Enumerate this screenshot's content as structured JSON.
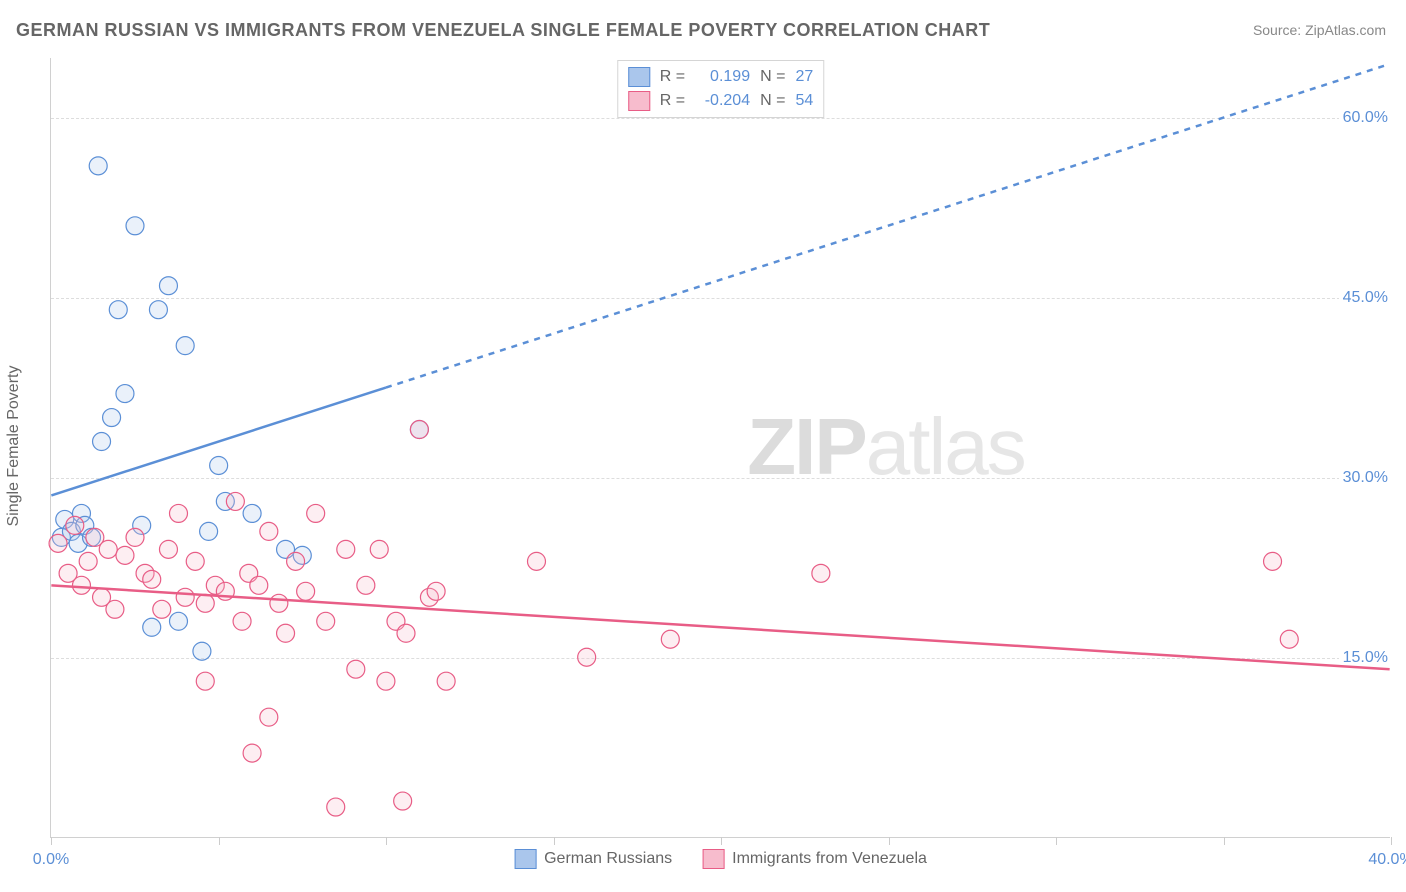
{
  "title": "GERMAN RUSSIAN VS IMMIGRANTS FROM VENEZUELA SINGLE FEMALE POVERTY CORRELATION CHART",
  "source": "Source: ZipAtlas.com",
  "watermark_bold": "ZIP",
  "watermark_light": "atlas",
  "yaxis_title": "Single Female Poverty",
  "chart": {
    "type": "scatter",
    "background_color": "#ffffff",
    "grid_color": "#dddddd",
    "axis_color": "#d0d0d0",
    "xlim": [
      0,
      40
    ],
    "ylim": [
      0,
      65
    ],
    "label_fontsize": 16,
    "ytick_color": "#5b8fd6",
    "yticks": [
      15,
      30,
      45,
      60
    ],
    "ytick_labels": [
      "15.0%",
      "30.0%",
      "45.0%",
      "60.0%"
    ],
    "xticks": [
      0,
      5,
      10,
      15,
      20,
      25,
      30,
      35,
      40
    ],
    "xtick_labels": {
      "0": "0.0%",
      "40": "40.0%"
    },
    "xtick_label_color": "#5b8fd6",
    "marker_radius": 9,
    "marker_fill_opacity": 0.25,
    "marker_stroke_width": 1.2,
    "line_width": 2.5,
    "series": [
      {
        "name": "German Russians",
        "color": "#5b8fd6",
        "fill": "#aac6ec",
        "R": "0.199",
        "N": "27",
        "trend": {
          "x1": 0,
          "y1": 28.5,
          "x2_solid": 10,
          "y2_solid": 37.5,
          "x2": 40,
          "y2": 64.5,
          "dash": "6,6"
        },
        "points": [
          [
            0.3,
            25
          ],
          [
            0.4,
            26.5
          ],
          [
            0.6,
            25.5
          ],
          [
            0.8,
            24.5
          ],
          [
            0.9,
            27
          ],
          [
            1.0,
            26
          ],
          [
            1.2,
            25
          ],
          [
            1.4,
            56
          ],
          [
            1.5,
            33
          ],
          [
            1.8,
            35
          ],
          [
            2.0,
            44
          ],
          [
            2.2,
            37
          ],
          [
            2.5,
            51
          ],
          [
            2.7,
            26
          ],
          [
            3.0,
            17.5
          ],
          [
            3.2,
            44
          ],
          [
            3.5,
            46
          ],
          [
            3.8,
            18
          ],
          [
            4.0,
            41
          ],
          [
            4.5,
            15.5
          ],
          [
            4.7,
            25.5
          ],
          [
            5.0,
            31
          ],
          [
            5.2,
            28
          ],
          [
            6.0,
            27
          ],
          [
            7.0,
            24
          ],
          [
            7.5,
            23.5
          ],
          [
            11.0,
            34
          ]
        ]
      },
      {
        "name": "Immigrants from Venezuela",
        "color": "#e85d86",
        "fill": "#f7bccd",
        "R": "-0.204",
        "N": "54",
        "trend": {
          "x1": 0,
          "y1": 21,
          "x2_solid": 40,
          "y2_solid": 14,
          "x2": 40,
          "y2": 14,
          "dash": ""
        },
        "points": [
          [
            0.2,
            24.5
          ],
          [
            0.5,
            22
          ],
          [
            0.7,
            26
          ],
          [
            0.9,
            21
          ],
          [
            1.1,
            23
          ],
          [
            1.3,
            25
          ],
          [
            1.5,
            20
          ],
          [
            1.7,
            24
          ],
          [
            1.9,
            19
          ],
          [
            2.2,
            23.5
          ],
          [
            2.5,
            25
          ],
          [
            2.8,
            22
          ],
          [
            3.0,
            21.5
          ],
          [
            3.3,
            19
          ],
          [
            3.5,
            24
          ],
          [
            3.8,
            27
          ],
          [
            4.0,
            20
          ],
          [
            4.3,
            23
          ],
          [
            4.6,
            19.5
          ],
          [
            4.6,
            13
          ],
          [
            4.9,
            21
          ],
          [
            5.2,
            20.5
          ],
          [
            5.5,
            28
          ],
          [
            5.7,
            18
          ],
          [
            5.9,
            22
          ],
          [
            6.0,
            7
          ],
          [
            6.2,
            21
          ],
          [
            6.5,
            10
          ],
          [
            6.5,
            25.5
          ],
          [
            6.8,
            19.5
          ],
          [
            7.0,
            17
          ],
          [
            7.3,
            23
          ],
          [
            7.6,
            20.5
          ],
          [
            7.9,
            27
          ],
          [
            8.2,
            18
          ],
          [
            8.5,
            2.5
          ],
          [
            8.8,
            24
          ],
          [
            9.1,
            14
          ],
          [
            9.4,
            21
          ],
          [
            9.8,
            24
          ],
          [
            10.0,
            13
          ],
          [
            10.3,
            18
          ],
          [
            10.5,
            3
          ],
          [
            10.6,
            17
          ],
          [
            11.0,
            34
          ],
          [
            11.3,
            20
          ],
          [
            11.8,
            13
          ],
          [
            14.5,
            23
          ],
          [
            16.0,
            15
          ],
          [
            18.5,
            16.5
          ],
          [
            23.0,
            22
          ],
          [
            36.5,
            23
          ],
          [
            37.0,
            16.5
          ],
          [
            11.5,
            20.5
          ]
        ]
      }
    ]
  },
  "bottom_legend": [
    {
      "label": "German Russians",
      "color": "#5b8fd6",
      "fill": "#aac6ec"
    },
    {
      "label": "Immigrants from Venezuela",
      "color": "#e85d86",
      "fill": "#f7bccd"
    }
  ]
}
